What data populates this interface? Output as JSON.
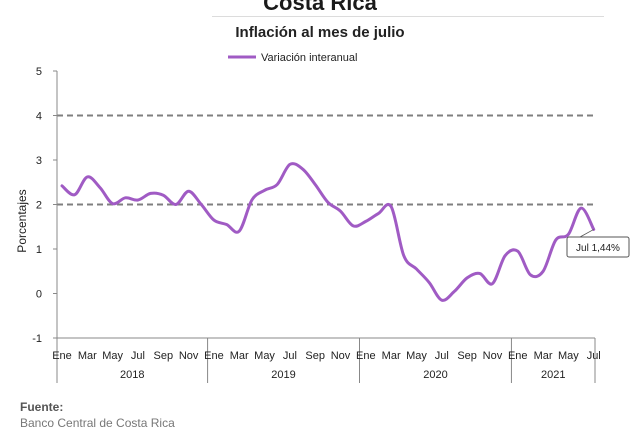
{
  "header": {
    "title": "Costa Rica",
    "subtitle": "Inflación al mes de julio"
  },
  "footer": {
    "source_label": "Fuente:",
    "source_text": "Banco Central de Costa Rica"
  },
  "chart_data": {
    "type": "line",
    "ylabel": "Porcentajes",
    "ylim": [
      -1,
      5
    ],
    "yticks": [
      -1,
      0,
      1,
      2,
      3,
      4,
      5
    ],
    "reference_lines": [
      2,
      4
    ],
    "legend": {
      "position": "top-center"
    },
    "colors": {
      "series": "#a05bc4",
      "reference": "#7f7f7f"
    },
    "x": [
      "2018-01",
      "2018-02",
      "2018-03",
      "2018-04",
      "2018-05",
      "2018-06",
      "2018-07",
      "2018-08",
      "2018-09",
      "2018-10",
      "2018-11",
      "2018-12",
      "2019-01",
      "2019-02",
      "2019-03",
      "2019-04",
      "2019-05",
      "2019-06",
      "2019-07",
      "2019-08",
      "2019-09",
      "2019-10",
      "2019-11",
      "2019-12",
      "2020-01",
      "2020-02",
      "2020-03",
      "2020-04",
      "2020-05",
      "2020-06",
      "2020-07",
      "2020-08",
      "2020-09",
      "2020-10",
      "2020-11",
      "2020-12",
      "2021-01",
      "2021-02",
      "2021-03",
      "2021-04",
      "2021-05",
      "2021-06",
      "2021-07"
    ],
    "series": [
      {
        "name": "Variación interanual",
        "values": [
          2.42,
          2.22,
          2.62,
          2.38,
          2.02,
          2.15,
          2.1,
          2.25,
          2.21,
          2.0,
          2.3,
          2.0,
          1.65,
          1.55,
          1.4,
          2.1,
          2.32,
          2.45,
          2.9,
          2.8,
          2.45,
          2.05,
          1.85,
          1.52,
          1.62,
          1.8,
          1.95,
          0.85,
          0.55,
          0.25,
          -0.15,
          0.05,
          0.35,
          0.45,
          0.22,
          0.85,
          0.95,
          0.42,
          0.5,
          1.2,
          1.33,
          1.92,
          1.44
        ]
      }
    ],
    "x_tick_labels": [
      "Ene",
      "Mar",
      "May",
      "Jul",
      "Sep",
      "Nov",
      "Ene",
      "Mar",
      "May",
      "Jul",
      "Sep",
      "Nov",
      "Ene",
      "Mar",
      "May",
      "Jul",
      "Sep",
      "Nov",
      "Ene",
      "Mar",
      "May",
      "Jul"
    ],
    "x_tick_index": [
      0,
      2,
      4,
      6,
      8,
      10,
      12,
      14,
      16,
      18,
      20,
      22,
      24,
      26,
      28,
      30,
      32,
      34,
      36,
      38,
      40,
      42
    ],
    "year_groups": [
      {
        "label": "2018",
        "start": 0,
        "end": 11
      },
      {
        "label": "2019",
        "start": 12,
        "end": 23
      },
      {
        "label": "2020",
        "start": 24,
        "end": 35
      },
      {
        "label": "2021",
        "start": 36,
        "end": 42
      }
    ],
    "annotation": {
      "index": 42,
      "text": "Jul 1,44%"
    }
  }
}
